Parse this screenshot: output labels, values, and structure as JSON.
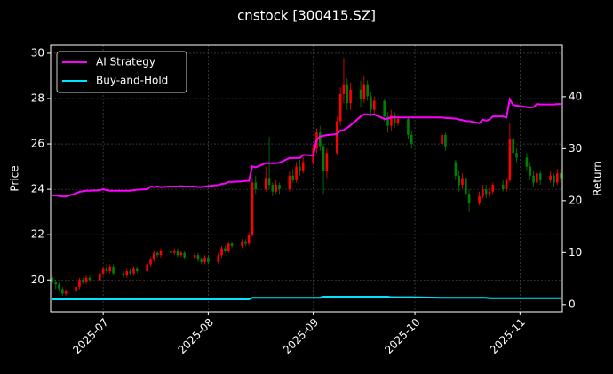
{
  "chart_data": {
    "type": "candlestick",
    "title": "cnstock [300415.SZ]",
    "x": [
      20255,
      20256,
      20257,
      20258,
      20259,
      20262,
      20263,
      20264,
      20265,
      20266,
      20269,
      20270,
      20271,
      20272,
      20273,
      20276,
      20277,
      20278,
      20279,
      20280,
      20283,
      20284,
      20285,
      20286,
      20287,
      20290,
      20291,
      20292,
      20293,
      20294,
      20297,
      20298,
      20299,
      20300,
      20301,
      20304,
      20305,
      20306,
      20307,
      20308,
      20311,
      20312,
      20313,
      20314,
      20315,
      20318,
      20319,
      20320,
      20321,
      20322,
      20325,
      20326,
      20327,
      20328,
      20329,
      20332,
      20333,
      20334,
      20335,
      20336,
      20339,
      20340,
      20341,
      20342,
      20343,
      20346,
      20347,
      20348,
      20349,
      20350,
      20353,
      20354,
      20355,
      20356,
      20357,
      20360,
      20361,
      20370,
      20371,
      20374,
      20375,
      20376,
      20377,
      20378,
      20381,
      20382,
      20383,
      20384,
      20385,
      20388,
      20389,
      20390,
      20391,
      20392,
      20395,
      20396,
      20397,
      20398,
      20399,
      20402,
      20403,
      20404,
      20405
    ],
    "open": [
      20.1,
      19.9,
      19.8,
      19.6,
      19.4,
      19.5,
      19.7,
      20.0,
      19.9,
      20.1,
      20.0,
      20.3,
      20.5,
      20.4,
      20.6,
      20.3,
      20.2,
      20.4,
      20.3,
      20.5,
      20.4,
      20.7,
      20.9,
      21.2,
      21.1,
      21.3,
      21.2,
      21.3,
      21.1,
      21.2,
      21.0,
      21.1,
      20.9,
      20.8,
      21.0,
      20.8,
      21.1,
      21.4,
      21.3,
      21.6,
      21.5,
      21.7,
      21.6,
      22.0,
      24.3,
      24.0,
      24.5,
      24.2,
      23.9,
      24.2,
      24.0,
      24.6,
      24.4,
      25.0,
      24.8,
      25.2,
      25.8,
      26.5,
      25.9,
      24.8,
      25.6,
      27.0,
      28.2,
      28.6,
      27.8,
      28.4,
      28.0,
      28.6,
      28.1,
      27.5,
      27.9,
      27.2,
      26.8,
      27.3,
      26.9,
      27.1,
      26.4,
      26.0,
      26.4,
      25.2,
      24.6,
      24.2,
      24.5,
      23.8,
      23.4,
      23.7,
      24.0,
      23.8,
      23.9,
      24.2,
      24.0,
      24.4,
      26.2,
      25.6,
      25.4,
      25.0,
      24.6,
      24.3,
      24.7,
      24.4,
      24.6,
      24.3,
      24.7
    ],
    "high": [
      20.2,
      20.0,
      19.9,
      19.7,
      19.6,
      19.8,
      20.1,
      20.1,
      20.2,
      20.2,
      20.4,
      20.6,
      20.7,
      20.7,
      20.7,
      20.4,
      20.5,
      20.5,
      20.6,
      20.6,
      20.8,
      21.0,
      21.3,
      21.3,
      21.4,
      21.4,
      21.4,
      21.4,
      21.3,
      21.3,
      21.2,
      21.2,
      21.0,
      21.1,
      21.1,
      21.2,
      21.5,
      21.5,
      21.7,
      21.7,
      21.8,
      21.8,
      22.1,
      24.5,
      24.6,
      25.0,
      26.3,
      24.3,
      24.4,
      24.3,
      24.8,
      24.9,
      25.2,
      25.3,
      25.4,
      26.0,
      26.7,
      26.8,
      26.0,
      25.8,
      27.2,
      28.5,
      29.8,
      28.9,
      28.7,
      28.8,
      29.0,
      28.8,
      28.3,
      28.1,
      28.0,
      27.4,
      27.5,
      27.4,
      27.3,
      27.2,
      26.6,
      26.5,
      26.5,
      25.3,
      24.8,
      24.7,
      24.6,
      24.0,
      23.9,
      24.2,
      24.2,
      24.1,
      24.3,
      24.4,
      24.5,
      26.9,
      26.4,
      25.8,
      25.6,
      25.2,
      24.8,
      24.9,
      24.8,
      24.8,
      24.7,
      24.9,
      24.9
    ],
    "low": [
      19.8,
      19.6,
      19.5,
      19.3,
      19.3,
      19.4,
      19.6,
      19.8,
      19.8,
      19.9,
      19.9,
      20.2,
      20.3,
      20.3,
      20.2,
      20.1,
      20.1,
      20.2,
      20.2,
      20.3,
      20.3,
      20.6,
      20.8,
      21.0,
      21.0,
      21.1,
      21.1,
      21.0,
      21.0,
      20.9,
      20.9,
      20.8,
      20.7,
      20.7,
      20.7,
      20.7,
      21.0,
      21.2,
      21.2,
      21.4,
      21.4,
      21.5,
      21.5,
      21.9,
      23.8,
      23.9,
      24.0,
      23.7,
      23.8,
      23.8,
      23.9,
      24.3,
      24.3,
      24.6,
      24.7,
      25.1,
      25.6,
      25.7,
      23.8,
      24.5,
      25.5,
      26.8,
      27.8,
      27.5,
      27.5,
      27.6,
      27.8,
      27.9,
      27.2,
      27.3,
      27.0,
      26.5,
      26.6,
      26.7,
      26.8,
      26.2,
      25.8,
      25.9,
      25.7,
      24.4,
      23.9,
      24.0,
      23.6,
      23.0,
      23.3,
      23.6,
      23.6,
      23.6,
      23.8,
      23.9,
      23.9,
      24.3,
      25.4,
      25.2,
      24.8,
      24.4,
      24.1,
      24.2,
      24.2,
      24.3,
      24.1,
      24.2,
      24.3
    ],
    "close": [
      19.9,
      19.8,
      19.6,
      19.4,
      19.5,
      19.7,
      20.0,
      19.9,
      20.1,
      20.0,
      20.3,
      20.5,
      20.4,
      20.6,
      20.3,
      20.2,
      20.4,
      20.3,
      20.5,
      20.4,
      20.7,
      20.9,
      21.2,
      21.1,
      21.3,
      21.2,
      21.3,
      21.1,
      21.2,
      21.0,
      21.1,
      20.9,
      20.8,
      21.0,
      20.8,
      21.1,
      21.4,
      21.3,
      21.6,
      21.5,
      21.7,
      21.6,
      22.0,
      24.3,
      24.0,
      24.5,
      24.2,
      23.9,
      24.2,
      24.0,
      24.6,
      24.4,
      25.0,
      24.8,
      25.2,
      25.8,
      26.5,
      25.9,
      24.8,
      25.6,
      27.0,
      28.2,
      28.6,
      27.8,
      28.4,
      28.0,
      28.6,
      28.1,
      27.5,
      27.9,
      27.2,
      26.8,
      27.3,
      26.9,
      27.1,
      26.4,
      26.0,
      26.4,
      25.9,
      24.6,
      24.2,
      24.5,
      23.8,
      23.4,
      23.7,
      24.0,
      23.8,
      23.9,
      24.2,
      24.0,
      24.4,
      26.2,
      25.6,
      25.4,
      25.0,
      24.6,
      24.3,
      24.7,
      24.4,
      24.6,
      24.3,
      24.7,
      24.5
    ],
    "up_color": "#ff0000",
    "down_color": "#008000",
    "xlim": [
      20254.5,
      20405.5
    ],
    "xticks": [
      {
        "value": 20270,
        "label": "2025-07"
      },
      {
        "value": 20301,
        "label": "2025-08"
      },
      {
        "value": 20332,
        "label": "2025-09"
      },
      {
        "value": 20362,
        "label": "2025-10"
      },
      {
        "value": 20393,
        "label": "2025-11"
      }
    ],
    "ylim": [
      18.6,
      30.35
    ],
    "yticks": [
      20,
      22,
      24,
      26,
      28,
      30
    ],
    "ylabel": "Price",
    "y2lim": [
      -1.4,
      49.9
    ],
    "y2ticks": [
      0,
      10,
      20,
      30,
      40
    ],
    "y2label": "Return",
    "series": [
      {
        "name": "AI Strategy",
        "color": "#ff00ff",
        "axis": "y2",
        "values": [
          21.0,
          21.0,
          20.9,
          20.8,
          20.8,
          21.4,
          21.7,
          21.8,
          21.9,
          21.9,
          22.0,
          22.2,
          22.0,
          21.9,
          21.9,
          21.9,
          21.9,
          21.9,
          22.0,
          22.1,
          22.2,
          22.7,
          22.6,
          22.7,
          22.6,
          22.7,
          22.7,
          22.7,
          22.8,
          22.7,
          22.7,
          22.6,
          22.6,
          22.7,
          22.8,
          23.0,
          23.2,
          23.3,
          23.6,
          23.6,
          23.7,
          23.8,
          23.8,
          26.6,
          26.4,
          27.2,
          27.2,
          27.2,
          27.2,
          27.3,
          28.2,
          28.2,
          28.2,
          28.2,
          28.8,
          28.7,
          31.7,
          32.3,
          32.5,
          32.6,
          32.8,
          33.5,
          33.6,
          34.0,
          34.5,
          36.2,
          36.6,
          36.6,
          36.5,
          36.6,
          35.7,
          35.8,
          36.0,
          36.0,
          36.0,
          36.0,
          36.0,
          36.0,
          35.9,
          35.8,
          35.6,
          35.5,
          35.3,
          35.3,
          34.9,
          35.6,
          35.4,
          35.6,
          36.2,
          36.2,
          36.0,
          39.5,
          38.4,
          38.3,
          38.0,
          37.9,
          38.0,
          38.6,
          38.5,
          38.5,
          38.5,
          38.6,
          38.6
        ]
      },
      {
        "name": "Buy-and-Hold",
        "color": "#00e5ff",
        "axis": "y2",
        "values": [
          1.0,
          1.0,
          1.0,
          1.0,
          1.0,
          1.0,
          1.0,
          1.0,
          1.0,
          1.0,
          1.0,
          1.0,
          1.0,
          1.0,
          1.0,
          1.0,
          1.0,
          1.0,
          1.0,
          1.0,
          1.0,
          1.0,
          1.0,
          1.0,
          1.0,
          1.0,
          1.0,
          1.0,
          1.0,
          1.0,
          1.0,
          1.0,
          1.0,
          1.0,
          1.0,
          1.0,
          1.0,
          1.0,
          1.0,
          1.0,
          1.0,
          1.0,
          1.0,
          1.3,
          1.3,
          1.3,
          1.3,
          1.3,
          1.3,
          1.3,
          1.3,
          1.3,
          1.3,
          1.3,
          1.3,
          1.3,
          1.3,
          1.3,
          1.5,
          1.5,
          1.5,
          1.5,
          1.5,
          1.5,
          1.5,
          1.5,
          1.5,
          1.5,
          1.5,
          1.5,
          1.5,
          1.5,
          1.4,
          1.4,
          1.4,
          1.4,
          1.4,
          1.3,
          1.3,
          1.3,
          1.3,
          1.3,
          1.3,
          1.3,
          1.3,
          1.3,
          1.3,
          1.2,
          1.2,
          1.2,
          1.2,
          1.2,
          1.2,
          1.2,
          1.2,
          1.2,
          1.2,
          1.2,
          1.2,
          1.2,
          1.2,
          1.2,
          1.2
        ]
      }
    ],
    "grid": true,
    "legend": "upper left"
  }
}
